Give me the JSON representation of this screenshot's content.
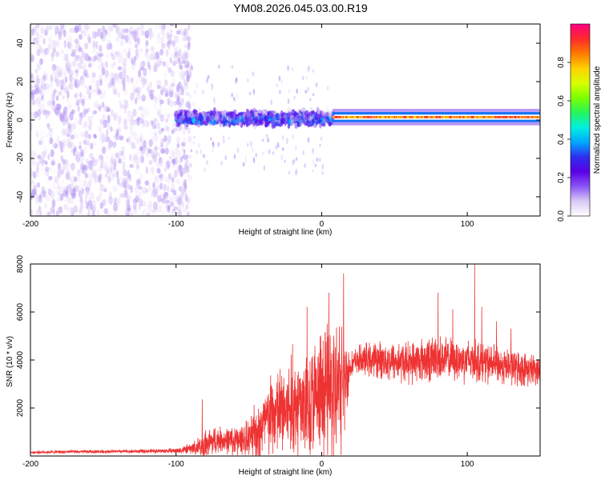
{
  "title": "YM08.2026.045.03.00.R19",
  "colors": {
    "line": "#ee3333",
    "colorbar": [
      "#ffffff",
      "#d9c9f5",
      "#8a55f5",
      "#5a00e6",
      "#2e2ef0",
      "#00a8ff",
      "#00f0e0",
      "#25f55a",
      "#7cff00",
      "#d8ff00",
      "#ffd000",
      "#ff7a00",
      "#ff2a2a",
      "#ff0080"
    ]
  },
  "chart_data": [
    {
      "type": "heatmap",
      "title": "YM08.2026.045.03.00.R19",
      "xlabel": "Height of straight line (km)",
      "ylabel": "Frequency (Hz)",
      "xlim": [
        -200,
        150
      ],
      "ylim": [
        -50,
        50
      ],
      "x_ticks": [
        "-200",
        "-100",
        "0",
        "100"
      ],
      "x_tick_values": [
        -200,
        -100,
        0,
        100
      ],
      "y_ticks": [
        "-40",
        "-20",
        "0",
        "20",
        "40"
      ],
      "y_tick_values": [
        -40,
        -20,
        0,
        20,
        40
      ],
      "colorbar": {
        "label": "Normalized spectral amplitude",
        "range": [
          0,
          1
        ],
        "ticks": [
          "0.0",
          "0.2",
          "0.4",
          "0.6",
          "0.8"
        ],
        "tick_values": [
          0.0,
          0.2,
          0.4,
          0.6,
          0.8
        ]
      },
      "description_regions": [
        {
          "x_range": [
            -200,
            -100
          ],
          "freq_range": [
            -50,
            50
          ],
          "amplitude": 0.05,
          "pattern": "scattered noise"
        },
        {
          "x_range": [
            -100,
            8
          ],
          "freq_range": [
            -10,
            10
          ],
          "amplitude": 0.3,
          "pattern": "broadened band near 0 Hz"
        },
        {
          "x_range": [
            8,
            150
          ],
          "freq_range": [
            0,
            3
          ],
          "amplitude": 0.95,
          "pattern": "narrow strong line near 2 Hz"
        }
      ]
    },
    {
      "type": "line",
      "xlabel": "Height of straight line (km)",
      "ylabel": "SNR (10 * v/v)",
      "xlim": [
        -200,
        150
      ],
      "ylim": [
        0,
        8000
      ],
      "x_ticks": [
        "-200",
        "-100",
        "0",
        "100"
      ],
      "x_tick_values": [
        -200,
        -100,
        0,
        100
      ],
      "y_ticks": [
        "2000",
        "4000",
        "6000",
        "8000"
      ],
      "y_tick_values": [
        2000,
        4000,
        6000,
        8000
      ],
      "series": [
        {
          "name": "SNR",
          "x": [
            -200,
            -180,
            -160,
            -140,
            -120,
            -100,
            -90,
            -80,
            -75,
            -70,
            -60,
            -50,
            -45,
            -40,
            -35,
            -30,
            -20,
            -10,
            -5,
            0,
            5,
            10,
            15,
            20,
            25,
            30,
            40,
            50,
            60,
            70,
            80,
            90,
            100,
            105,
            110,
            120,
            130,
            140,
            150
          ],
          "center": [
            150,
            170,
            180,
            190,
            200,
            220,
            300,
            450,
            600,
            700,
            600,
            700,
            1000,
            1300,
            1600,
            1800,
            2000,
            2200,
            2300,
            2400,
            2600,
            2700,
            3000,
            3800,
            4000,
            4000,
            4000,
            3950,
            3900,
            4000,
            4100,
            4000,
            4000,
            4000,
            3900,
            3800,
            3700,
            3600,
            3600
          ],
          "spread": [
            60,
            80,
            80,
            80,
            90,
            120,
            250,
            700,
            800,
            600,
            700,
            900,
            1500,
            1700,
            2000,
            2200,
            2600,
            2800,
            3000,
            3200,
            3500,
            3500,
            3000,
            600,
            700,
            800,
            900,
            1000,
            1000,
            1100,
            1100,
            1000,
            1100,
            1000,
            1000,
            900,
            900,
            800,
            700
          ],
          "peaks": [
            [
              -82,
              2350
            ],
            [
              -35,
              3350
            ],
            [
              -20,
              4650
            ],
            [
              -10,
              6200
            ],
            [
              5,
              6800
            ],
            [
              15,
              7600
            ],
            [
              80,
              6800
            ],
            [
              90,
              6100
            ],
            [
              105,
              8000
            ],
            [
              110,
              6200
            ],
            [
              120,
              5600
            ],
            [
              130,
              5300
            ]
          ]
        }
      ]
    }
  ]
}
